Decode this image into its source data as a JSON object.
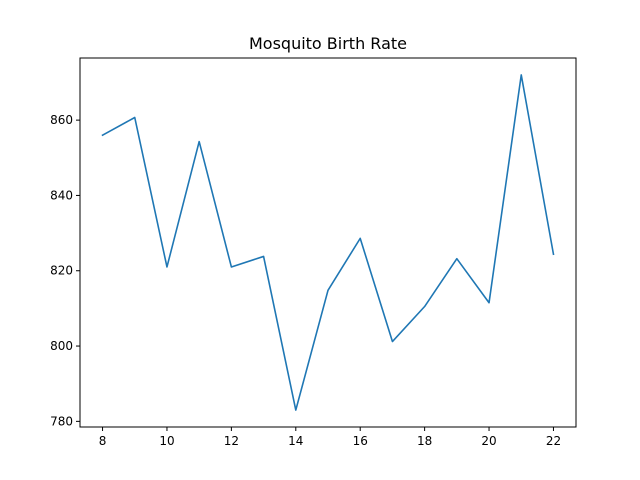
{
  "chart_data": {
    "type": "line",
    "title": "Mosquito Birth Rate",
    "xlabel": "",
    "ylabel": "",
    "x": [
      8,
      9,
      10,
      11,
      12,
      13,
      14,
      15,
      16,
      17,
      18,
      19,
      20,
      21,
      22
    ],
    "series": [
      {
        "values": [
          856.0,
          860.7,
          821.0,
          854.3,
          821.0,
          823.8,
          783.0,
          814.8,
          828.6,
          801.2,
          810.5,
          823.2,
          811.5,
          872.0,
          824.4
        ],
        "color": "#1f77b4"
      }
    ],
    "xlim": [
      7.3,
      22.7
    ],
    "ylim": [
      778.5,
      876.5
    ],
    "xticks": [
      8,
      10,
      12,
      14,
      16,
      18,
      20,
      22
    ],
    "yticks": [
      780,
      800,
      820,
      840,
      860
    ],
    "grid": false
  }
}
